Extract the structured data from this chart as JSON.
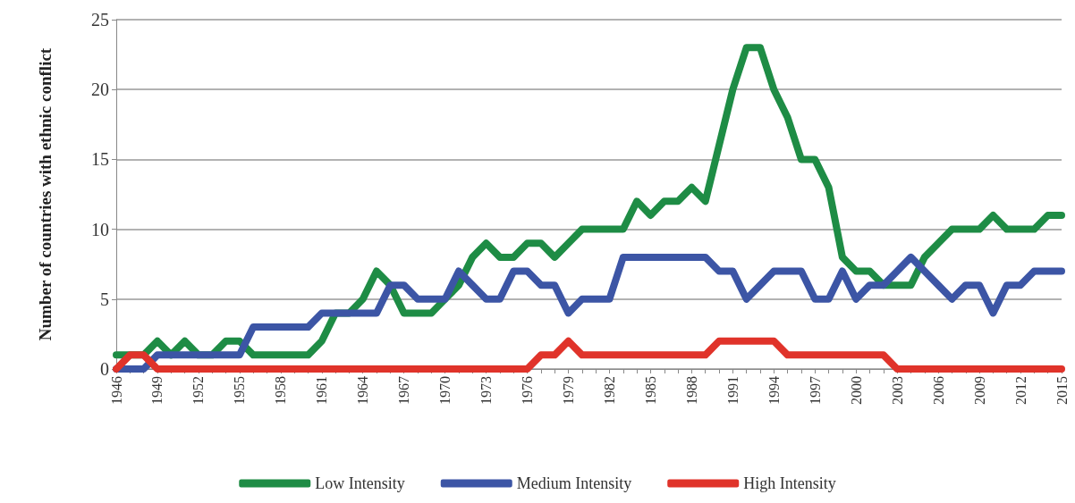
{
  "chart_data": {
    "type": "line",
    "ylabel": "Number of countries with ethnic conflict",
    "categories": [
      "1946",
      null,
      null,
      "1949",
      null,
      null,
      "1952",
      null,
      null,
      "1955",
      null,
      null,
      "1958",
      null,
      null,
      "1961",
      null,
      null,
      "1964",
      null,
      null,
      "1967",
      null,
      null,
      "1970",
      null,
      null,
      "1973",
      null,
      null,
      "1976",
      null,
      null,
      "1979",
      null,
      null,
      "1982",
      null,
      null,
      "1985",
      null,
      null,
      "1988",
      null,
      null,
      "1991",
      null,
      null,
      "1994",
      null,
      null,
      "1997",
      null,
      null,
      "2000",
      null,
      null,
      "2003",
      null,
      null,
      "2006",
      null,
      null,
      "2009",
      null,
      null,
      "2012",
      null,
      null,
      "2015"
    ],
    "series": [
      {
        "name": "Low Intensity",
        "color": "#1e8c45",
        "values": [
          1,
          1,
          1,
          2,
          1,
          2,
          1,
          1,
          2,
          2,
          1,
          1,
          1,
          1,
          1,
          2,
          4,
          4,
          5,
          7,
          6,
          4,
          4,
          4,
          5,
          6,
          8,
          9,
          8,
          8,
          9,
          9,
          8,
          9,
          10,
          10,
          10,
          10,
          12,
          11,
          12,
          12,
          13,
          12,
          16,
          20,
          23,
          23,
          20,
          18,
          15,
          15,
          13,
          8,
          7,
          7,
          6,
          6,
          6,
          8,
          9,
          10,
          10,
          10,
          11,
          10,
          10,
          10,
          11,
          11
        ]
      },
      {
        "name": "Medium Intensity",
        "color": "#3c55a5",
        "values": [
          0,
          0,
          0,
          1,
          1,
          1,
          1,
          1,
          1,
          1,
          3,
          3,
          3,
          3,
          3,
          4,
          4,
          4,
          4,
          4,
          6,
          6,
          5,
          5,
          5,
          7,
          6,
          5,
          5,
          7,
          7,
          6,
          6,
          4,
          5,
          5,
          5,
          8,
          8,
          8,
          8,
          8,
          8,
          8,
          7,
          7,
          5,
          6,
          7,
          7,
          7,
          5,
          5,
          7,
          5,
          6,
          6,
          7,
          8,
          7,
          6,
          5,
          6,
          6,
          4,
          6,
          6,
          7,
          7,
          7
        ]
      },
      {
        "name": "High Intensity",
        "color": "#e0332a",
        "values": [
          0,
          1,
          1,
          0,
          0,
          0,
          0,
          0,
          0,
          0,
          0,
          0,
          0,
          0,
          0,
          0,
          0,
          0,
          0,
          0,
          0,
          0,
          0,
          0,
          0,
          0,
          0,
          0,
          0,
          0,
          0,
          1,
          1,
          2,
          1,
          1,
          1,
          1,
          1,
          1,
          1,
          1,
          1,
          1,
          2,
          2,
          2,
          2,
          2,
          1,
          1,
          1,
          1,
          1,
          1,
          1,
          1,
          0,
          0,
          0,
          0,
          0,
          0,
          0,
          0,
          0,
          0,
          0,
          0,
          0
        ]
      }
    ],
    "ylim": [
      0,
      25
    ],
    "yticks": [
      0,
      5,
      10,
      15,
      20,
      25
    ],
    "grid": "y",
    "legend": "bottom",
    "marker": "none",
    "line_style": "solid"
  }
}
